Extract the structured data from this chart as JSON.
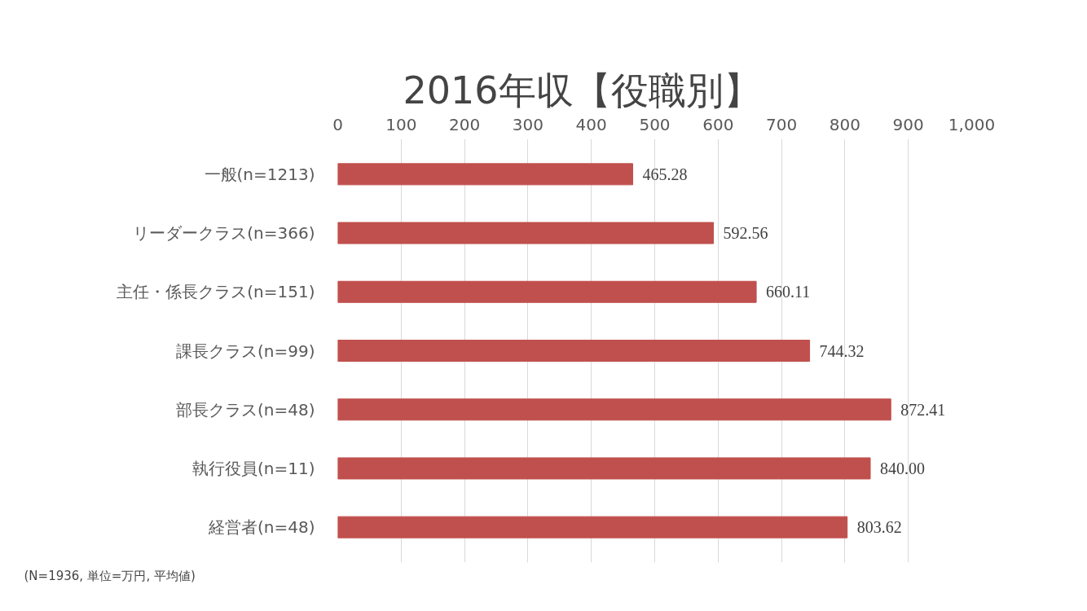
{
  "chart_data": {
    "type": "bar",
    "orientation": "horizontal",
    "title": "2016年収【役職別】",
    "categories": [
      "一般(n=1213)",
      "リーダークラス(n=366)",
      "主任・係長クラス(n=151)",
      "課長クラス(n=99)",
      "部長クラス(n=48)",
      "執行役員(n=11)",
      "経営者(n=48)"
    ],
    "values": [
      465.28,
      592.56,
      660.11,
      744.32,
      872.41,
      840.0,
      803.62
    ],
    "value_labels": [
      "465.28",
      "592.56",
      "660.11",
      "744.32",
      "872.41",
      "840.00",
      "803.62"
    ],
    "color": "#c0504d",
    "xlim": [
      0,
      1000
    ],
    "xticks": [
      0,
      100,
      200,
      300,
      400,
      500,
      600,
      700,
      800,
      900,
      {
        "value": 1000,
        "label": "1,000"
      }
    ],
    "grid": "x",
    "annotations": [
      "(N=1936, 単位=万円, 平均値)"
    ]
  }
}
